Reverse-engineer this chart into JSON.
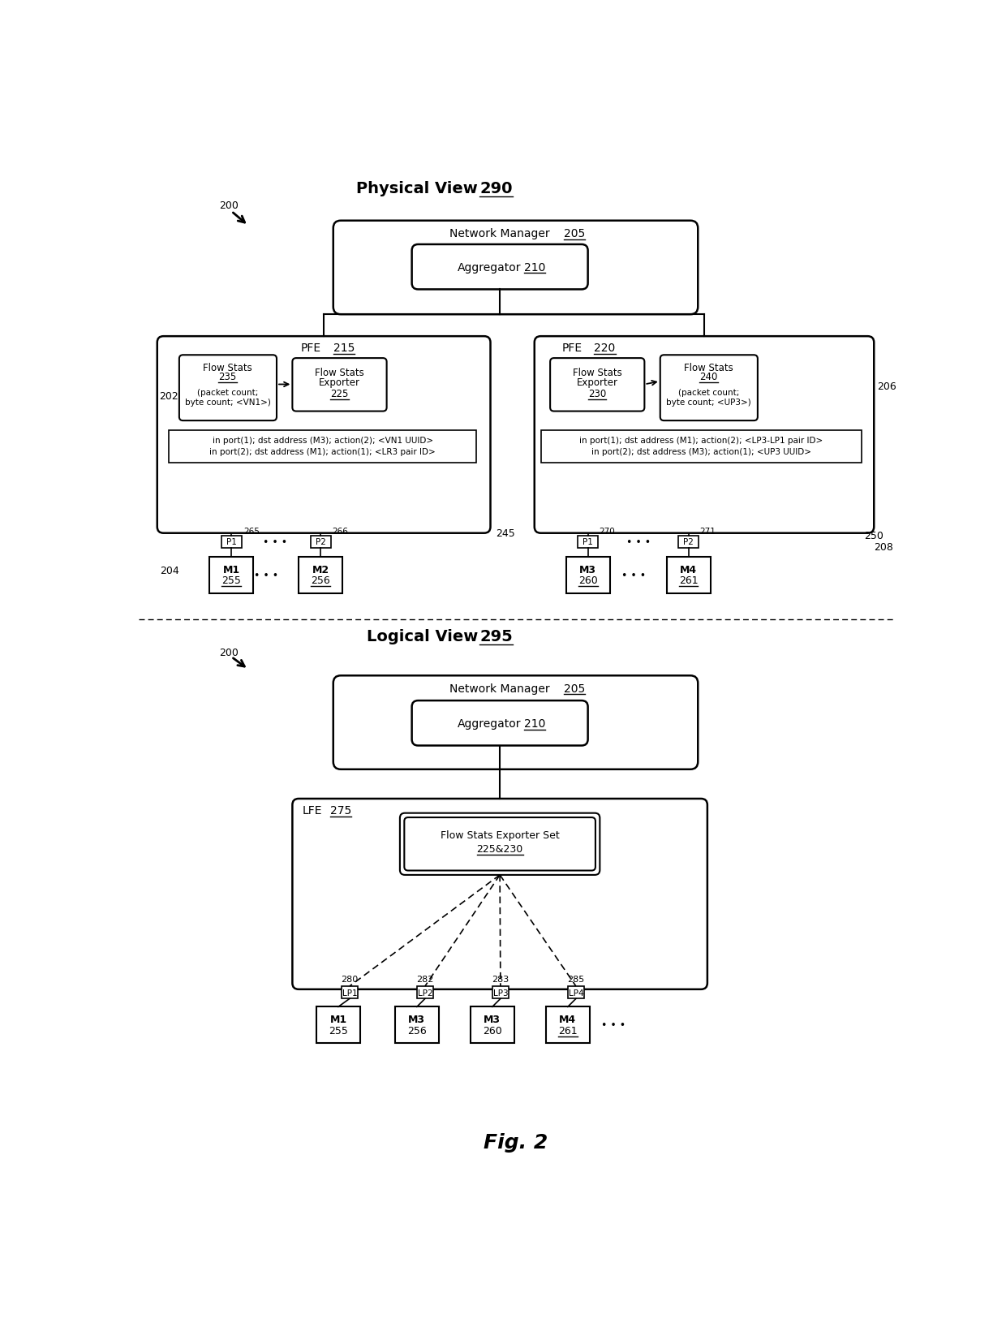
{
  "bg_color": "#ffffff",
  "phys_title": "Physical View",
  "phys_title_num": "290",
  "log_title": "Logical View",
  "log_title_num": "295",
  "fig_label": "Fig. 2",
  "nm_label": "Network Manager",
  "nm_num": "205",
  "agg_label": "Aggregator",
  "agg_num": "210",
  "pfe215_label": "PFE",
  "pfe215_num": "215",
  "pfe220_label": "PFE",
  "pfe220_num": "220",
  "fs235_line1": "Flow Stats",
  "fs235_line2": "235",
  "fs235_line3": "(packet count;",
  "fs235_line4": "byte count; <VN1>)",
  "fse225_line1": "Flow Stats",
  "fse225_line2": "Exporter",
  "fse225_line3": "225",
  "fse230_line1": "Flow Stats",
  "fse230_line2": "Exporter",
  "fse230_line3": "230",
  "fs240_line1": "Flow Stats",
  "fs240_line2": "240",
  "fs240_line3": "(packet count;",
  "fs240_line4": "byte count; <UP3>)",
  "rt215_line1": "in port(1); dst address (M3); action(2); <VN1 UUID>",
  "rt215_line2": "in port(2); dst address (M1); action(1); <LR3 pair ID>",
  "rt220_line1": "in port(1); dst address (M1); action(2); <LP3-LP1 pair ID>",
  "rt220_line2": "in port(2); dst address (M3); action(1); <UP3 UUID>",
  "lfe_label": "LFE",
  "lfe_num": "275",
  "fse_set_line1": "Flow Stats Exporter Set",
  "fse_set_line2": "225&230"
}
